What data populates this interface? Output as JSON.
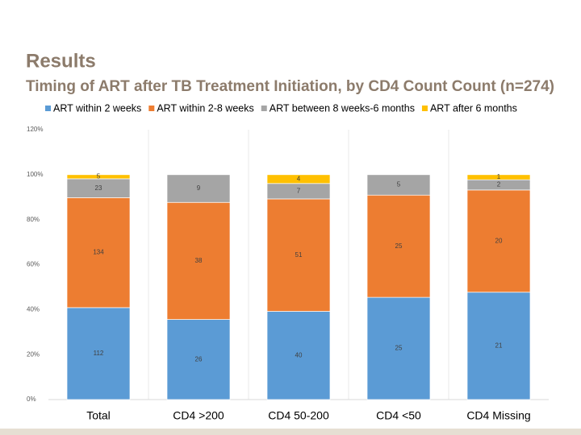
{
  "slide": {
    "heading": "Results"
  },
  "chart_data": {
    "type": "percent_stacked_bar",
    "title": "Timing of ART after TB Treatment Initiation, by CD4 Count Count (n=274)",
    "categories": [
      "Total",
      "CD4 >200",
      "CD4 50-200",
      "CD4 <50",
      "CD4 Missing"
    ],
    "series": [
      {
        "name": "ART within 2 weeks",
        "color": "#5b9bd5",
        "values": [
          112,
          26,
          40,
          25,
          21
        ]
      },
      {
        "name": "ART within 2-8 weeks",
        "color": "#ed7d31",
        "values": [
          134,
          38,
          51,
          25,
          20
        ]
      },
      {
        "name": "ART between 8 weeks-6 months",
        "color": "#a5a5a5",
        "values": [
          23,
          9,
          7,
          5,
          2
        ]
      },
      {
        "name": "ART after 6 months",
        "color": "#ffc000",
        "values": [
          5,
          null,
          4,
          null,
          1
        ]
      }
    ],
    "ylim": [
      0,
      120
    ],
    "yticks": [
      {
        "value": 0,
        "label": "0%"
      },
      {
        "value": 20,
        "label": "20%"
      },
      {
        "value": 40,
        "label": "40%"
      },
      {
        "value": 60,
        "label": "60%"
      },
      {
        "value": 80,
        "label": "80%"
      },
      {
        "value": 100,
        "label": "100%"
      },
      {
        "value": 120,
        "label": "120%"
      }
    ],
    "legend": "top"
  }
}
